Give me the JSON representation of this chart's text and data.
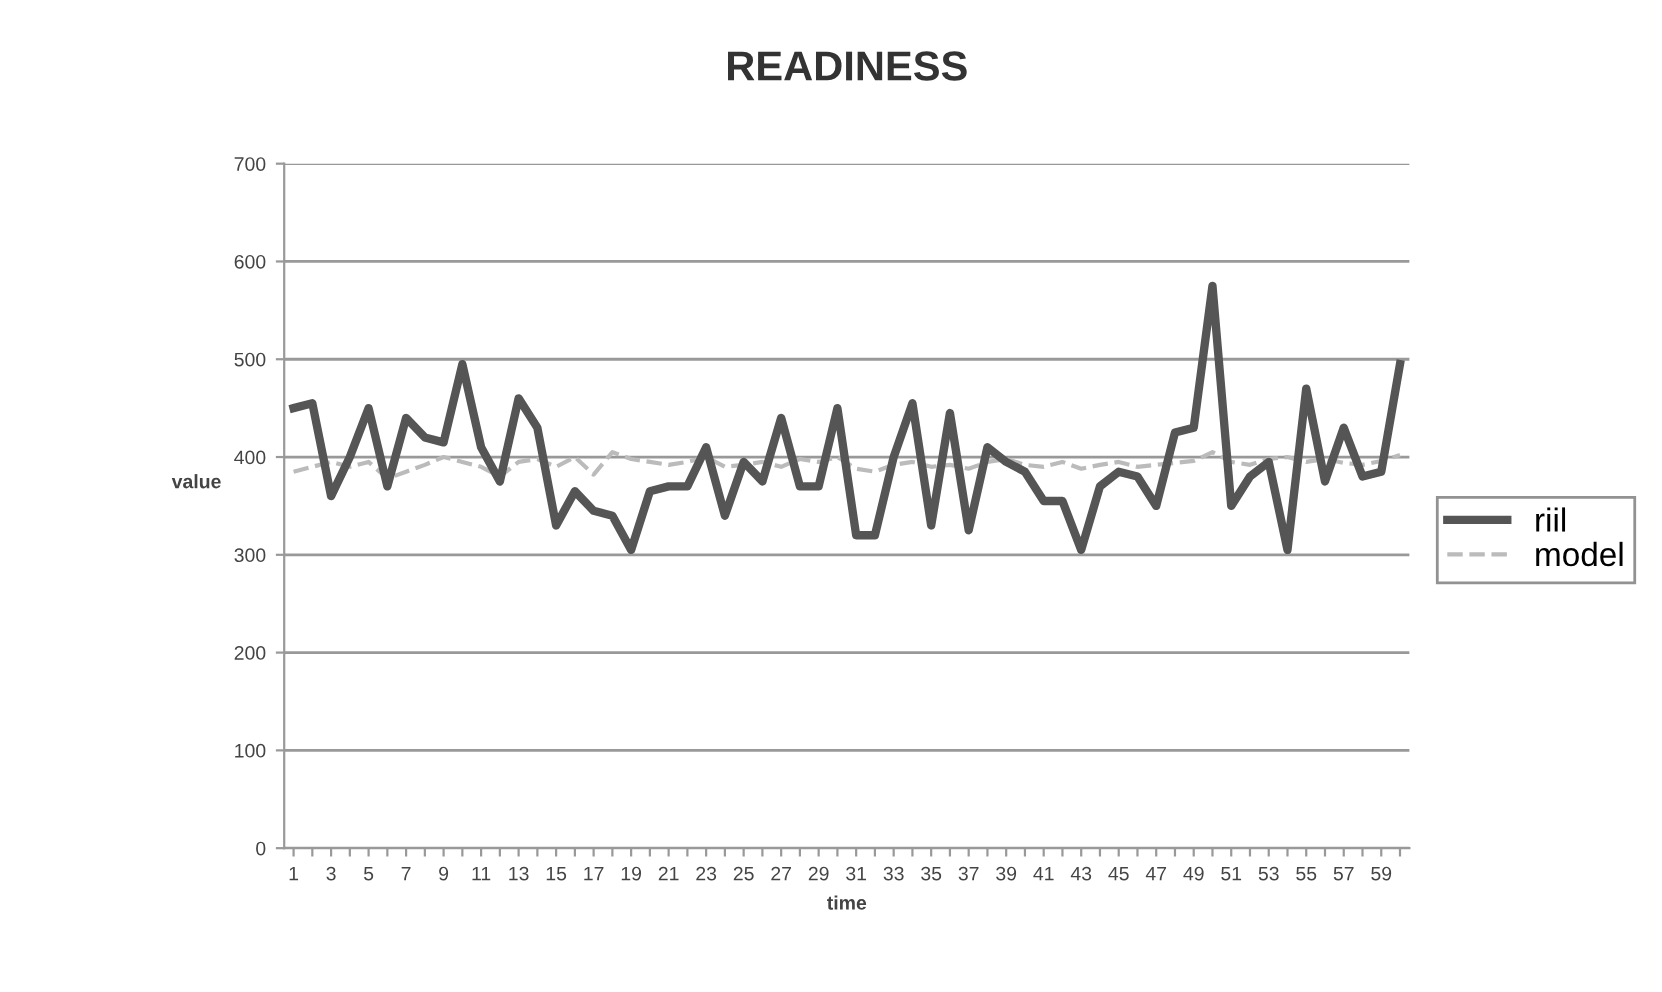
{
  "chart_data": {
    "type": "line",
    "title": "READINESS",
    "xlabel": "time",
    "ylabel": "value",
    "categories": [
      "1",
      null,
      "3",
      null,
      "5",
      null,
      "7",
      null,
      "9",
      null,
      "11",
      null,
      "13",
      null,
      "15",
      null,
      "17",
      null,
      "19",
      null,
      "21",
      null,
      "23",
      null,
      "25",
      null,
      "27",
      null,
      "29",
      null,
      "31",
      null,
      "33",
      null,
      "35",
      null,
      "37",
      null,
      "39",
      null,
      "41",
      null,
      "43",
      null,
      "45",
      null,
      "47",
      null,
      "49",
      null,
      "51",
      null,
      "53",
      null,
      "55",
      null,
      "57",
      null,
      "59",
      null
    ],
    "series": [
      {
        "name": "riil",
        "color": "#555555",
        "line_style": "solid",
        "values": [
          450,
          455,
          360,
          400,
          450,
          370,
          440,
          420,
          415,
          495,
          410,
          375,
          460,
          430,
          330,
          365,
          345,
          340,
          305,
          365,
          370,
          370,
          410,
          340,
          395,
          375,
          440,
          370,
          370,
          450,
          320,
          320,
          400,
          455,
          330,
          445,
          325,
          410,
          395,
          385,
          355,
          355,
          305,
          370,
          385,
          380,
          350,
          425,
          430,
          575,
          350,
          380,
          395,
          305,
          470,
          375,
          430,
          380,
          385,
          495
        ]
      },
      {
        "name": "model",
        "color": "#bbbbbb",
        "line_style": "dashed",
        "values": [
          385,
          390,
          395,
          390,
          395,
          378,
          385,
          392,
          400,
          395,
          390,
          380,
          395,
          398,
          390,
          400,
          382,
          405,
          398,
          395,
          392,
          395,
          400,
          390,
          392,
          395,
          390,
          398,
          395,
          400,
          388,
          385,
          392,
          395,
          390,
          392,
          388,
          395,
          398,
          392,
          390,
          395,
          388,
          392,
          395,
          390,
          392,
          394,
          396,
          405,
          395,
          392,
          398,
          400,
          395,
          398,
          394,
          392,
          396,
          402
        ]
      }
    ],
    "ylim": [
      0,
      700
    ],
    "yticks": [
      0,
      100,
      200,
      300,
      400,
      500,
      600,
      700
    ],
    "grid": "y",
    "legend": "right",
    "marker": "none"
  }
}
